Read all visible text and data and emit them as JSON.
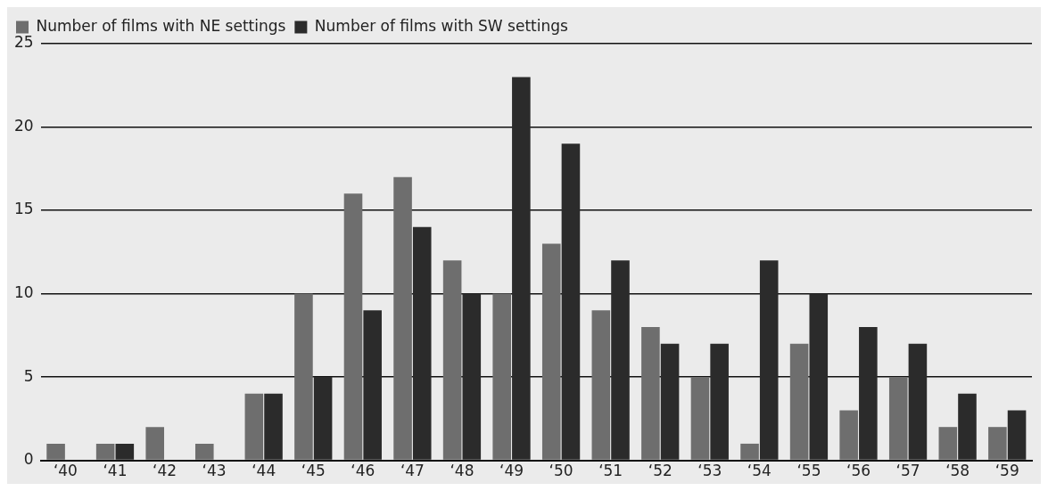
{
  "chart_data": {
    "type": "bar",
    "categories": [
      "‘40",
      "‘41",
      "‘42",
      "‘43",
      "‘44",
      "‘45",
      "‘46",
      "‘47",
      "‘48",
      "‘49",
      "‘50",
      "‘51",
      "‘52",
      "‘53",
      "‘54",
      "‘55",
      "‘56",
      "‘57",
      "‘58",
      "‘59"
    ],
    "series": [
      {
        "name": "Number of films with NE settings",
        "color": "#6e6e6e",
        "values": [
          1,
          1,
          2,
          1,
          4,
          10,
          16,
          17,
          12,
          10,
          13,
          9,
          8,
          5,
          1,
          7,
          3,
          5,
          2,
          2
        ]
      },
      {
        "name": "Number of films with SW settings",
        "color": "#2b2b2b",
        "values": [
          0,
          1,
          0,
          0,
          4,
          5,
          9,
          14,
          10,
          23,
          19,
          12,
          7,
          7,
          12,
          10,
          8,
          7,
          4,
          3
        ]
      }
    ],
    "ylim": [
      0,
      25
    ],
    "yticks": [
      0,
      5,
      10,
      15,
      20,
      25
    ],
    "grid": "y",
    "legend": "top left"
  }
}
